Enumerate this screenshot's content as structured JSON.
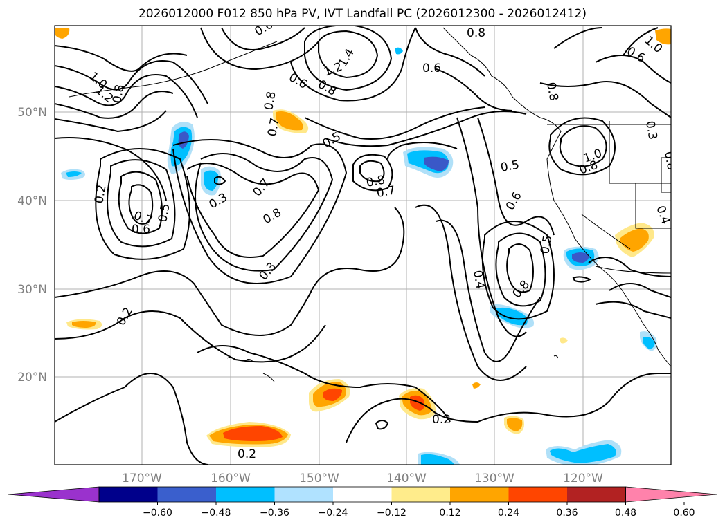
{
  "title": "2026012000 F012 850 hPa PV, IVT Landfall PC (2026012300 - 2026012412)",
  "map": {
    "lat_ticks": [
      "50°N",
      "40°N",
      "30°N",
      "20°N"
    ],
    "lon_ticks": [
      "170°W",
      "160°W",
      "150°W",
      "140°W",
      "130°W",
      "120°W"
    ],
    "contour_labels": [
      "1.0",
      "1.2",
      "0.8",
      "0.6",
      "0.8",
      "1.2",
      "1.4",
      "0.6",
      "0.8",
      "0.6",
      "0.8",
      "0.7",
      "0.5",
      "1.0",
      "0.8",
      "0.5",
      "0.8",
      "0.7",
      "0.3",
      "0.7",
      "0.8",
      "0.2",
      "0.7",
      "0.6",
      "0.5",
      "0.6",
      "0.4",
      "0.5",
      "0.8",
      "0.3",
      "0.2",
      "0.2",
      "0.2",
      "0.8",
      "1.0",
      "0.3",
      "0.4",
      "0.6",
      "0.8"
    ],
    "shading_colors": {
      "strong_neg": "#3a58c8",
      "mid_neg": "#00bfff",
      "weak_neg": "#b0e0f8",
      "weak_pos": "#ffe88a",
      "mid_pos": "#ffa500",
      "strong_pos": "#ff4500"
    }
  },
  "colorbar": {
    "colors": [
      "#9a32cd",
      "#00008b",
      "#3a5fcd",
      "#00bfff",
      "#b0e2ff",
      "#ffffff",
      "#ffec8b",
      "#ffa500",
      "#ff4500",
      "#b22222",
      "#ff82ab"
    ],
    "under_color": "#9a32cd",
    "over_color": "#ff82ab",
    "ticks": [
      "−0.60",
      "−0.48",
      "−0.36",
      "−0.24",
      "−0.12",
      "0.12",
      "0.24",
      "0.36",
      "0.48",
      "0.60"
    ]
  }
}
